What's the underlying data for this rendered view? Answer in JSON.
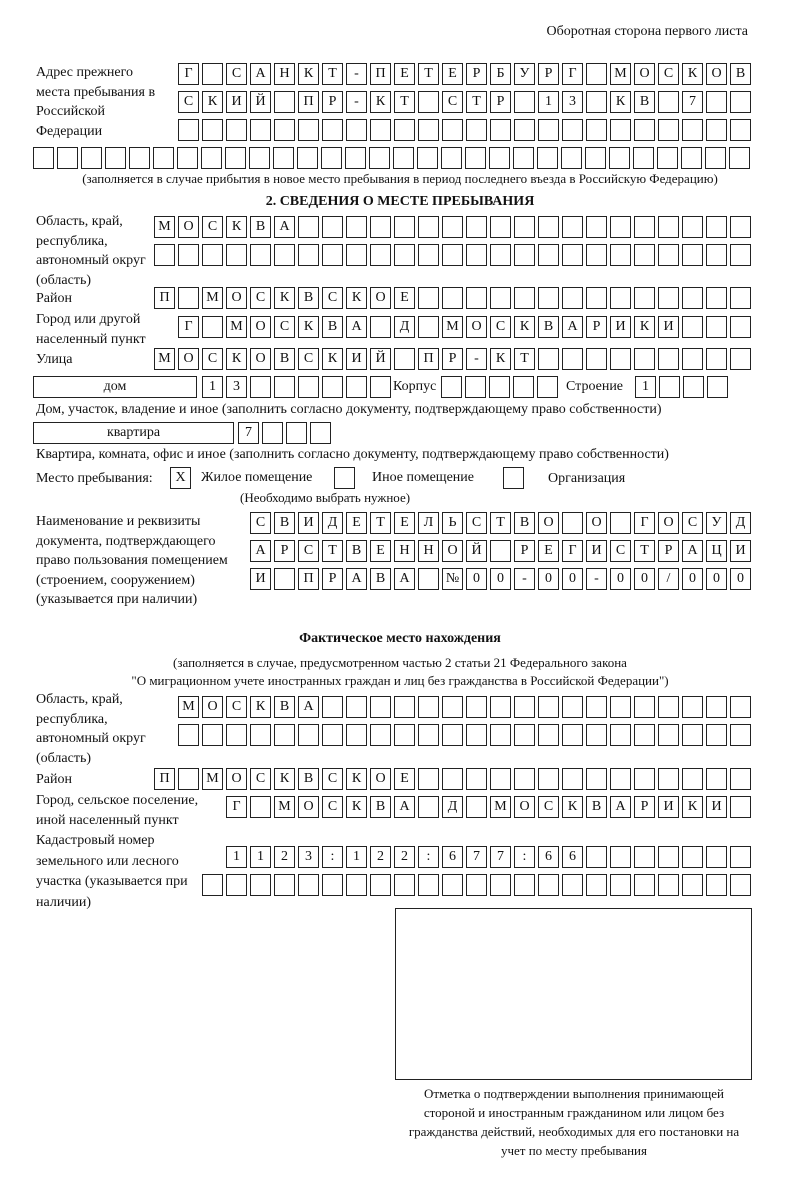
{
  "header": "Оборотная сторона первого листа",
  "prev_address": {
    "label": "Адрес прежнего места пребывания в Российской Федерации",
    "rows": [
      [
        "Г",
        "",
        "С",
        "А",
        "Н",
        "К",
        "Т",
        "-",
        "П",
        "Е",
        "Т",
        "Е",
        "Р",
        "Б",
        "У",
        "Р",
        "Г",
        "",
        "М",
        "О",
        "С",
        "К",
        "О",
        "В"
      ],
      [
        "С",
        "К",
        "И",
        "Й",
        "",
        "П",
        "Р",
        "-",
        "К",
        "Т",
        "",
        "С",
        "Т",
        "Р",
        "",
        "1",
        "3",
        "",
        "К",
        "В",
        "",
        "7",
        "",
        ""
      ],
      [
        "",
        "",
        "",
        "",
        "",
        "",
        "",
        "",
        "",
        "",
        "",
        "",
        "",
        "",
        "",
        "",
        "",
        "",
        "",
        "",
        "",
        "",
        "",
        ""
      ],
      [
        "",
        "",
        "",
        "",
        "",
        "",
        "",
        "",
        "",
        "",
        "",
        "",
        "",
        "",
        "",
        "",
        "",
        "",
        "",
        "",
        "",
        "",
        "",
        "",
        "",
        "",
        "",
        "",
        "",
        ""
      ]
    ],
    "note": "(заполняется в случае прибытия в новое место пребывания в период последнего въезда в Российскую Федерацию)"
  },
  "section2": {
    "title": "2. СВЕДЕНИЯ О МЕСТЕ ПРЕБЫВАНИЯ",
    "region_label": "Область, край, республика, автономный округ (область)",
    "region_rows": [
      [
        "М",
        "О",
        "С",
        "К",
        "В",
        "А",
        "",
        "",
        "",
        "",
        "",
        "",
        "",
        "",
        "",
        "",
        "",
        "",
        "",
        "",
        "",
        "",
        "",
        "",
        ""
      ],
      [
        "",
        "",
        "",
        "",
        "",
        "",
        "",
        "",
        "",
        "",
        "",
        "",
        "",
        "",
        "",
        "",
        "",
        "",
        "",
        "",
        "",
        "",
        "",
        "",
        ""
      ]
    ],
    "district_label": "Район",
    "district": [
      "П",
      "",
      "М",
      "О",
      "С",
      "К",
      "В",
      "С",
      "К",
      "О",
      "Е",
      "",
      "",
      "",
      "",
      "",
      "",
      "",
      "",
      "",
      "",
      "",
      "",
      "",
      ""
    ],
    "city_label": "Город или другой населенный пункт",
    "city": [
      "Г",
      "",
      "М",
      "О",
      "С",
      "К",
      "В",
      "А",
      "",
      "Д",
      "",
      "М",
      "О",
      "С",
      "К",
      "В",
      "А",
      "Р",
      "И",
      "К",
      "И",
      "",
      "",
      ""
    ],
    "street_label": "Улица",
    "street": [
      "М",
      "О",
      "С",
      "К",
      "О",
      "В",
      "С",
      "К",
      "И",
      "Й",
      "",
      "П",
      "Р",
      "-",
      "К",
      "Т",
      "",
      "",
      "",
      "",
      "",
      "",
      "",
      "",
      ""
    ],
    "house_type": "дом",
    "house": [
      "1",
      "3",
      "",
      "",
      "",
      "",
      "",
      ""
    ],
    "korpus_label": "Корпус",
    "korpus": [
      "",
      "",
      "",
      "",
      ""
    ],
    "building_label": "Строение",
    "building": [
      "1",
      "",
      "",
      ""
    ],
    "house_note": "Дом, участок, владение и иное (заполнить согласно документу, подтверждающему право собственности)",
    "flat_type": "квартира",
    "flat": [
      "7",
      "",
      "",
      ""
    ],
    "flat_note": "Квартира, комната, офис и иное (заполнить согласно документу, подтверждающему право собственности)",
    "place_label": "Место пребывания:",
    "options": [
      {
        "mark": "X",
        "label": "Жилое помещение"
      },
      {
        "mark": "",
        "label": "Иное помещение"
      },
      {
        "mark": "",
        "label": "Организация"
      }
    ],
    "choose_note": "(Необходимо выбрать нужное)",
    "doc_label": "Наименование и реквизиты документа, подтверждающего право пользования помещением (строением, сооружением) (указывается при наличии)",
    "doc_rows": [
      [
        "С",
        "В",
        "И",
        "Д",
        "Е",
        "Т",
        "Е",
        "Л",
        "Ь",
        "С",
        "Т",
        "В",
        "О",
        "",
        "О",
        "",
        "Г",
        "О",
        "С",
        "У",
        "Д"
      ],
      [
        "А",
        "Р",
        "С",
        "Т",
        "В",
        "Е",
        "Н",
        "Н",
        "О",
        "Й",
        "",
        "Р",
        "Е",
        "Г",
        "И",
        "С",
        "Т",
        "Р",
        "А",
        "Ц",
        "И"
      ],
      [
        "И",
        "",
        "П",
        "Р",
        "А",
        "В",
        "А",
        "",
        "№",
        "0",
        "0",
        "-",
        "0",
        "0",
        "-",
        "0",
        "0",
        "/",
        "0",
        "0",
        "0"
      ]
    ]
  },
  "actual": {
    "title": "Фактическое место нахождения",
    "note1": "(заполняется в случае, предусмотренном частью 2 статьи 21 Федерального закона",
    "note2": "\"О миграционном учете иностранных граждан и лиц без гражданства в Российской Федерации\")",
    "region_label": "Область, край, республика, автономный округ (область)",
    "region_rows": [
      [
        "М",
        "О",
        "С",
        "К",
        "В",
        "А",
        "",
        "",
        "",
        "",
        "",
        "",
        "",
        "",
        "",
        "",
        "",
        "",
        "",
        "",
        "",
        "",
        "",
        ""
      ],
      [
        "",
        "",
        "",
        "",
        "",
        "",
        "",
        "",
        "",
        "",
        "",
        "",
        "",
        "",
        "",
        "",
        "",
        "",
        "",
        "",
        "",
        "",
        "",
        ""
      ]
    ],
    "district_label": "Район",
    "district": [
      "П",
      "",
      "М",
      "О",
      "С",
      "К",
      "В",
      "С",
      "К",
      "О",
      "Е",
      "",
      "",
      "",
      "",
      "",
      "",
      "",
      "",
      "",
      "",
      "",
      "",
      "",
      ""
    ],
    "city_label": "Город, сельское поселение, иной населенный пункт",
    "city": [
      "Г",
      "",
      "М",
      "О",
      "С",
      "К",
      "В",
      "А",
      "",
      "Д",
      "",
      "М",
      "О",
      "С",
      "К",
      "В",
      "А",
      "Р",
      "И",
      "К",
      "И",
      ""
    ],
    "cadastral_label": "Кадастровый номер земельного или лесного участка (указывается при наличии)",
    "cadastral_rows": [
      [
        "1",
        "1",
        "2",
        "3",
        ":",
        "1",
        "2",
        "2",
        ":",
        "6",
        "7",
        "7",
        ":",
        "6",
        "6",
        "",
        "",
        "",
        "",
        "",
        "",
        ""
      ],
      [
        "",
        "",
        "",
        "",
        "",
        "",
        "",
        "",
        "",
        "",
        "",
        "",
        "",
        "",
        "",
        "",
        "",
        "",
        "",
        "",
        "",
        "",
        ""
      ]
    ]
  },
  "stamp_caption": "Отметка о подтверждении выполнения принимающей стороной и иностранным гражданином или лицом без гражданства действий, необходимых для его постановки на учет по месту пребывания"
}
